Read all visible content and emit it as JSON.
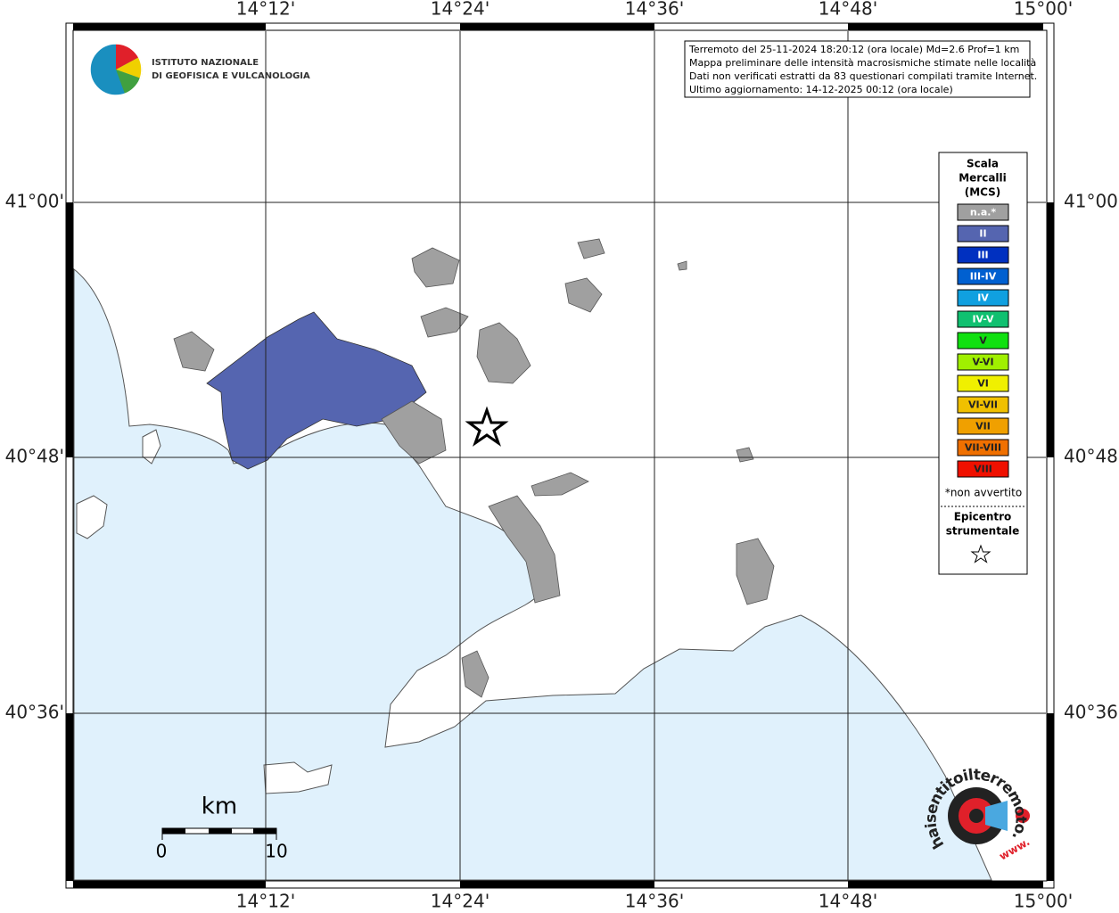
{
  "info": [
    "Terremoto del 25-11-2024 18:20:12 (ora locale) Md=2.6 Prof=1 km",
    "Mappa preliminare delle intensità macrosismiche stimate nelle località",
    "Dati non verificati estratti da 83 questionari compilati tramite Internet.",
    "Ultimo aggiornamento: 14-12-2025 00:12 (ora locale)"
  ],
  "logo": {
    "lines": [
      "ISTITUTO NAZIONALE",
      "DI GEOFISICA E VULCANOLOGIA"
    ]
  },
  "longitudes": [
    "14°12'",
    "14°24'",
    "14°36'",
    "14°48'",
    "15°00'"
  ],
  "latitudes": [
    "41°00'",
    "40°48'",
    "40°36'"
  ],
  "legend": {
    "title": [
      "Scala",
      "Mercalli",
      "(MCS)"
    ],
    "items": [
      {
        "label": "n.a.*",
        "color": "#a0a0a0"
      },
      {
        "label": "II",
        "color": "#5565b0"
      },
      {
        "label": "III",
        "color": "#0030c0"
      },
      {
        "label": "III-IV",
        "color": "#0060d0"
      },
      {
        "label": "IV",
        "color": "#10a0e0"
      },
      {
        "label": "IV-V",
        "color": "#10c070"
      },
      {
        "label": "V",
        "color": "#10e010"
      },
      {
        "label": "V-VI",
        "color": "#a0f000"
      },
      {
        "label": "VI",
        "color": "#f0f000"
      },
      {
        "label": "VI-VII",
        "color": "#f0c000"
      },
      {
        "label": "VII",
        "color": "#f0a000"
      },
      {
        "label": "VII-VIII",
        "color": "#f07000"
      },
      {
        "label": "VIII",
        "color": "#f01000"
      }
    ],
    "note": "*non avvertito",
    "epicenter": [
      "Epicentro",
      "strumentale"
    ]
  },
  "scale": {
    "unit": "km",
    "start": 0,
    "end": 10
  },
  "watermark": {
    "site": "haisentitoilterremoto.it",
    "www": "www."
  }
}
